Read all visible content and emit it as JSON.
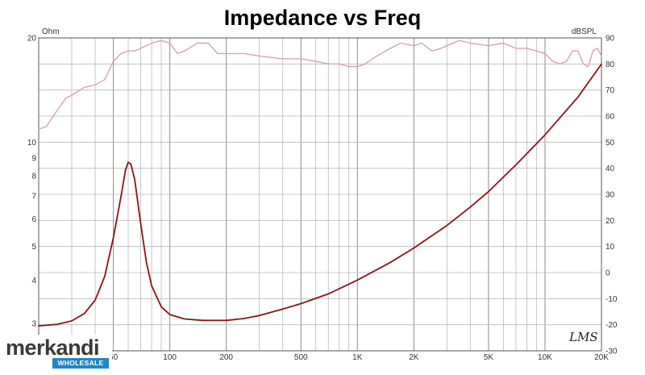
{
  "chart_data": {
    "type": "line",
    "title": "Impedance vs Freq",
    "x_scale": "log",
    "xlim": [
      20,
      20000
    ],
    "x_tick_labels": [
      {
        "v": 50,
        "t": "50"
      },
      {
        "v": 100,
        "t": "100"
      },
      {
        "v": 200,
        "t": "200"
      },
      {
        "v": 500,
        "t": "500"
      },
      {
        "v": 1000,
        "t": "1K"
      },
      {
        "v": 2000,
        "t": "2K"
      },
      {
        "v": 5000,
        "t": "5K"
      },
      {
        "v": 10000,
        "t": "10K"
      },
      {
        "v": 20000,
        "t": "20K"
      }
    ],
    "y_left": {
      "unit": "Ohm",
      "scale": "log",
      "range": [
        2.5,
        20
      ],
      "ticks": [
        {
          "v": 3,
          "t": "3"
        },
        {
          "v": 4,
          "t": "4"
        },
        {
          "v": 5,
          "t": "5"
        },
        {
          "v": 6,
          "t": "6"
        },
        {
          "v": 7,
          "t": "7"
        },
        {
          "v": 8,
          "t": "8"
        },
        {
          "v": 9,
          "t": "9"
        },
        {
          "v": 10,
          "t": "10"
        },
        {
          "v": 20,
          "t": "20"
        }
      ]
    },
    "y_right": {
      "unit": "dBSPL",
      "scale": "linear",
      "range": [
        -30,
        90
      ],
      "ticks": [
        -30,
        -20,
        -10,
        0,
        10,
        20,
        30,
        40,
        50,
        60,
        70,
        80,
        90
      ]
    },
    "grid": true,
    "series": [
      {
        "axis": "left",
        "color": "#8b1515",
        "points": [
          [
            20,
            2.95
          ],
          [
            25,
            2.98
          ],
          [
            30,
            3.05
          ],
          [
            35,
            3.2
          ],
          [
            40,
            3.5
          ],
          [
            45,
            4.1
          ],
          [
            50,
            5.3
          ],
          [
            55,
            7.0
          ],
          [
            58,
            8.3
          ],
          [
            60,
            8.75
          ],
          [
            62,
            8.65
          ],
          [
            65,
            7.8
          ],
          [
            70,
            5.8
          ],
          [
            75,
            4.5
          ],
          [
            80,
            3.85
          ],
          [
            90,
            3.35
          ],
          [
            100,
            3.18
          ],
          [
            120,
            3.09
          ],
          [
            150,
            3.06
          ],
          [
            200,
            3.06
          ],
          [
            250,
            3.1
          ],
          [
            300,
            3.16
          ],
          [
            400,
            3.3
          ],
          [
            500,
            3.42
          ],
          [
            700,
            3.65
          ],
          [
            1000,
            4.0
          ],
          [
            1500,
            4.5
          ],
          [
            2000,
            4.95
          ],
          [
            3000,
            5.75
          ],
          [
            4000,
            6.5
          ],
          [
            5000,
            7.2
          ],
          [
            7000,
            8.6
          ],
          [
            10000,
            10.5
          ],
          [
            15000,
            13.5
          ],
          [
            20000,
            16.8
          ]
        ]
      },
      {
        "axis": "right",
        "color": "#d8a4a4",
        "points": [
          [
            20,
            55
          ],
          [
            22,
            56
          ],
          [
            25,
            62
          ],
          [
            28,
            67
          ],
          [
            30,
            68
          ],
          [
            35,
            71
          ],
          [
            40,
            72
          ],
          [
            45,
            74
          ],
          [
            50,
            81
          ],
          [
            55,
            84
          ],
          [
            60,
            85
          ],
          [
            65,
            85
          ],
          [
            70,
            86
          ],
          [
            80,
            88
          ],
          [
            90,
            89
          ],
          [
            100,
            88
          ],
          [
            110,
            84
          ],
          [
            120,
            85
          ],
          [
            140,
            88
          ],
          [
            160,
            88
          ],
          [
            180,
            84
          ],
          [
            200,
            84
          ],
          [
            250,
            84
          ],
          [
            300,
            83
          ],
          [
            400,
            82
          ],
          [
            500,
            82
          ],
          [
            600,
            81
          ],
          [
            700,
            80
          ],
          [
            800,
            80
          ],
          [
            900,
            79
          ],
          [
            1000,
            79
          ],
          [
            1100,
            80
          ],
          [
            1200,
            82
          ],
          [
            1500,
            86
          ],
          [
            1700,
            88
          ],
          [
            2000,
            87
          ],
          [
            2200,
            88
          ],
          [
            2500,
            85
          ],
          [
            2800,
            86
          ],
          [
            3000,
            87
          ],
          [
            3500,
            89
          ],
          [
            4000,
            88
          ],
          [
            5000,
            87
          ],
          [
            6000,
            88
          ],
          [
            7000,
            86
          ],
          [
            8000,
            86
          ],
          [
            9000,
            85
          ],
          [
            10000,
            84
          ],
          [
            11000,
            81
          ],
          [
            12000,
            80
          ],
          [
            13000,
            81
          ],
          [
            14000,
            85
          ],
          [
            15000,
            85
          ],
          [
            16000,
            80
          ],
          [
            17000,
            79
          ],
          [
            18000,
            85
          ],
          [
            19000,
            86
          ],
          [
            20000,
            83
          ]
        ]
      }
    ],
    "annotations": [
      "LMS"
    ]
  },
  "watermark": {
    "brand": "merkandi",
    "tag": "WHOLESALE",
    "accent": "#1e88c8"
  }
}
